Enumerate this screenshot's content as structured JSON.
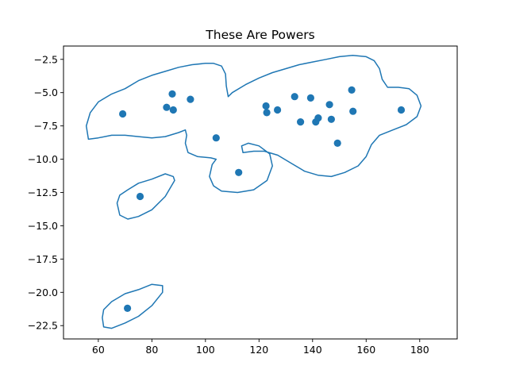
{
  "chart_data": {
    "type": "scatter",
    "title": "These Are Powers",
    "xlabel": "",
    "ylabel": "",
    "xlim": [
      47,
      194
    ],
    "ylim": [
      -23.5,
      -1.5
    ],
    "xticks": [
      60,
      80,
      100,
      120,
      140,
      160,
      180
    ],
    "yticks": [
      -2.5,
      -5.0,
      -7.5,
      -10.0,
      -12.5,
      -15.0,
      -17.5,
      -20.0,
      -22.5
    ],
    "xtick_labels": [
      "60",
      "80",
      "100",
      "120",
      "140",
      "160",
      "180"
    ],
    "ytick_labels": [
      "−2.5",
      "−5.0",
      "−7.5",
      "−10.0",
      "−12.5",
      "−15.0",
      "−17.5",
      "−20.0",
      "−22.5"
    ],
    "grid": false,
    "color": "#1f77b4",
    "points": [
      {
        "x": 69.1,
        "y": -6.6
      },
      {
        "x": 87.6,
        "y": -5.1
      },
      {
        "x": 85.5,
        "y": -6.1
      },
      {
        "x": 88.0,
        "y": -6.3
      },
      {
        "x": 94.4,
        "y": -5.5
      },
      {
        "x": 104.0,
        "y": -8.4
      },
      {
        "x": 112.4,
        "y": -11.0
      },
      {
        "x": 122.6,
        "y": -6.0
      },
      {
        "x": 122.9,
        "y": -6.5
      },
      {
        "x": 126.9,
        "y": -6.3
      },
      {
        "x": 133.3,
        "y": -5.3
      },
      {
        "x": 135.5,
        "y": -7.2
      },
      {
        "x": 139.3,
        "y": -5.4
      },
      {
        "x": 141.2,
        "y": -7.2
      },
      {
        "x": 142.1,
        "y": -6.9
      },
      {
        "x": 146.3,
        "y": -5.9
      },
      {
        "x": 147.0,
        "y": -7.0
      },
      {
        "x": 149.3,
        "y": -8.8
      },
      {
        "x": 154.6,
        "y": -4.8
      },
      {
        "x": 155.1,
        "y": -6.4
      },
      {
        "x": 173.1,
        "y": -6.3
      },
      {
        "x": 75.6,
        "y": -12.8
      },
      {
        "x": 70.9,
        "y": -21.2
      }
    ],
    "contours": [
      {
        "name": "",
        "points": [
          [
            56.3,
            -8.5
          ],
          [
            55.5,
            -7.5
          ],
          [
            57,
            -6.5
          ],
          [
            60,
            -5.7
          ],
          [
            65,
            -5.1
          ],
          [
            70,
            -4.7
          ],
          [
            75,
            -4.1
          ],
          [
            80,
            -3.7
          ],
          [
            85,
            -3.4
          ],
          [
            90,
            -3.1
          ],
          [
            95,
            -2.9
          ],
          [
            100,
            -2.8
          ],
          [
            103,
            -2.8
          ],
          [
            106,
            -3.0
          ],
          [
            107.5,
            -3.6
          ],
          [
            107.8,
            -4.5
          ],
          [
            108.5,
            -5.3
          ],
          [
            110,
            -5.0
          ],
          [
            115,
            -4.4
          ],
          [
            120,
            -3.9
          ],
          [
            125,
            -3.5
          ],
          [
            130,
            -3.2
          ],
          [
            135,
            -2.9
          ],
          [
            140,
            -2.7
          ],
          [
            145,
            -2.5
          ],
          [
            150,
            -2.3
          ],
          [
            155,
            -2.2
          ],
          [
            160,
            -2.3
          ],
          [
            163,
            -2.6
          ],
          [
            165,
            -3.2
          ],
          [
            166,
            -4.0
          ],
          [
            168,
            -4.6
          ],
          [
            172,
            -4.6
          ],
          [
            176,
            -4.7
          ],
          [
            179,
            -5.2
          ],
          [
            180.5,
            -6.0
          ],
          [
            179,
            -6.8
          ],
          [
            175,
            -7.4
          ],
          [
            170,
            -7.8
          ],
          [
            165,
            -8.2
          ],
          [
            162,
            -8.9
          ],
          [
            160,
            -9.8
          ],
          [
            157,
            -10.5
          ],
          [
            152,
            -11.0
          ],
          [
            147,
            -11.3
          ],
          [
            142,
            -11.2
          ],
          [
            137,
            -10.9
          ],
          [
            132,
            -10.3
          ],
          [
            127,
            -9.7
          ],
          [
            122,
            -9.4
          ],
          [
            118,
            -9.4
          ],
          [
            114,
            -9.5
          ],
          [
            113.5,
            -9.0
          ],
          [
            116,
            -8.8
          ],
          [
            120,
            -9.0
          ],
          [
            124,
            -9.6
          ],
          [
            125,
            -10.5
          ],
          [
            123,
            -11.6
          ],
          [
            118,
            -12.3
          ],
          [
            112,
            -12.5
          ],
          [
            106,
            -12.4
          ],
          [
            103,
            -12.0
          ],
          [
            101.5,
            -11.3
          ],
          [
            102.5,
            -10.4
          ],
          [
            104,
            -10.0
          ],
          [
            102,
            -9.9
          ],
          [
            97,
            -9.8
          ],
          [
            93.5,
            -9.5
          ],
          [
            92.5,
            -8.8
          ],
          [
            93,
            -8.2
          ],
          [
            92.5,
            -7.8
          ],
          [
            90,
            -8.0
          ],
          [
            85,
            -8.3
          ],
          [
            80,
            -8.4
          ],
          [
            75,
            -8.3
          ],
          [
            70,
            -8.2
          ],
          [
            65,
            -8.2
          ],
          [
            60,
            -8.4
          ],
          [
            56.3,
            -8.5
          ]
        ]
      },
      {
        "name": "",
        "points": [
          [
            67,
            -13.3
          ],
          [
            68,
            -14.2
          ],
          [
            71,
            -14.5
          ],
          [
            75,
            -14.3
          ],
          [
            80,
            -13.8
          ],
          [
            85,
            -12.8
          ],
          [
            88.5,
            -11.6
          ],
          [
            88,
            -11.3
          ],
          [
            85,
            -11.1
          ],
          [
            80,
            -11.5
          ],
          [
            75,
            -11.8
          ],
          [
            71,
            -12.3
          ],
          [
            68,
            -12.7
          ],
          [
            67,
            -13.3
          ]
        ]
      },
      {
        "name": "",
        "points": [
          [
            61.5,
            -21.9
          ],
          [
            62,
            -22.6
          ],
          [
            65,
            -22.7
          ],
          [
            70,
            -22.3
          ],
          [
            75,
            -21.8
          ],
          [
            80,
            -21.0
          ],
          [
            84,
            -20.0
          ],
          [
            84,
            -19.5
          ],
          [
            80,
            -19.4
          ],
          [
            75,
            -19.8
          ],
          [
            70,
            -20.1
          ],
          [
            65,
            -20.7
          ],
          [
            62,
            -21.3
          ],
          [
            61.5,
            -21.9
          ]
        ]
      }
    ]
  }
}
